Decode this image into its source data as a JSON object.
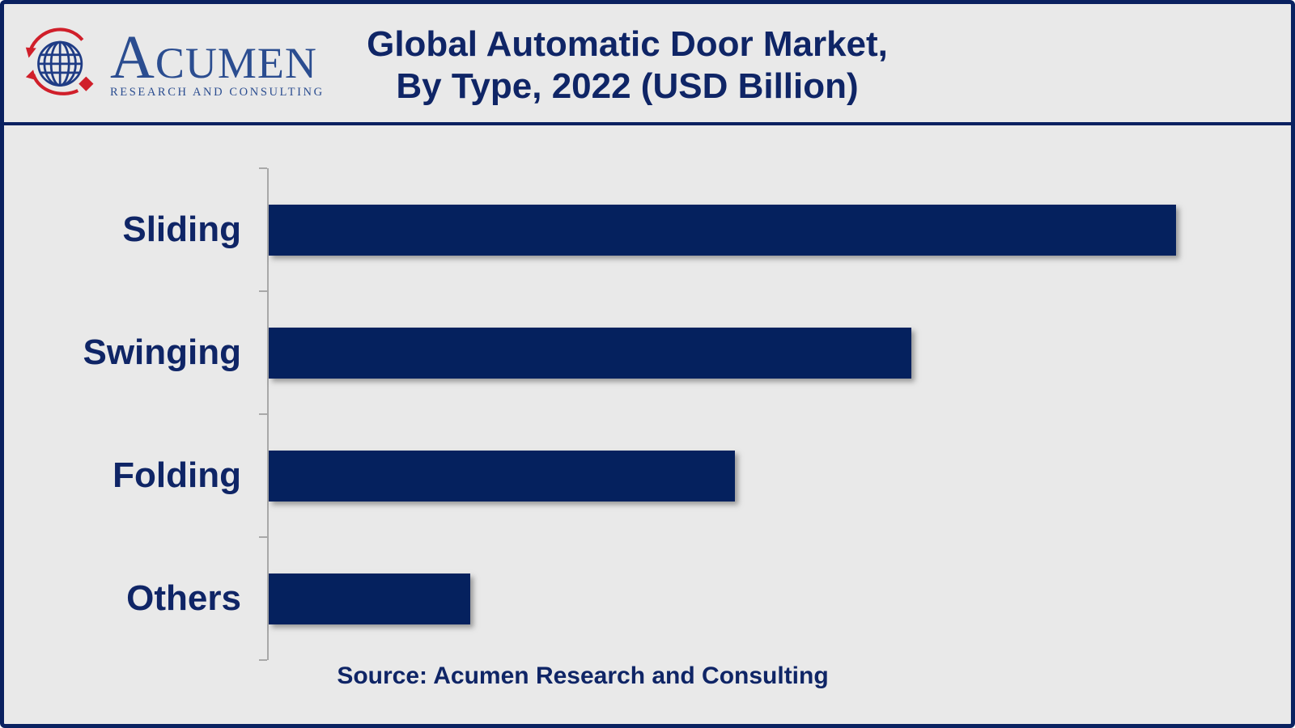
{
  "logo": {
    "name_initial": "A",
    "name_rest": "CUMEN",
    "tagline": "RESEARCH AND CONSULTING"
  },
  "title": {
    "line1": "Global Automatic Door Market,",
    "line2": "By Type, 2022 (USD Billion)"
  },
  "source": {
    "text": "Source: Acumen Research and Consulting"
  },
  "colors": {
    "frame_navy": "#0a2160",
    "bar_navy": "#05215e",
    "text_navy": "#0f2566",
    "logo_blue": "#2b4d90",
    "logo_globe_blue": "#1f3c85",
    "logo_red": "#d01f2a",
    "background": "#e9e9e9",
    "axis_grey": "#a8a8a8"
  },
  "chart_data": {
    "type": "bar",
    "orientation": "horizontal",
    "title": "Global Automatic Door Market, By Type, 2022 (USD Billion)",
    "categories": [
      "Sliding",
      "Swinging",
      "Folding",
      "Others"
    ],
    "values": [
      100,
      70.8,
      51.4,
      22.2
    ],
    "values_note": "relative bar lengths as % of longest bar; no numeric axis labels or data labels are shown in the image",
    "xlabel": "",
    "ylabel": "",
    "grid": false,
    "legend": false,
    "value_labels_shown": false,
    "tick_count": 5
  }
}
